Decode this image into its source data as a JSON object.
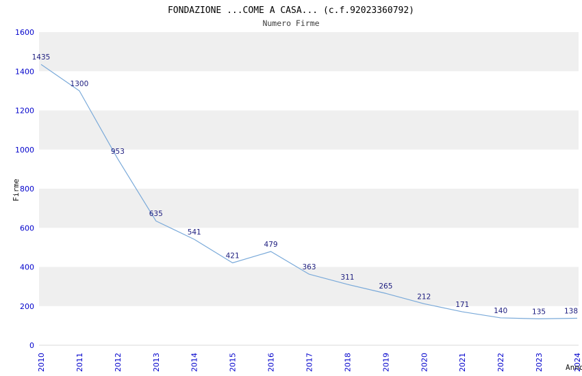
{
  "header": {
    "title": "FONDAZIONE ...COME A CASA... (c.f.92023360792)",
    "subtitle": "Numero Firme"
  },
  "chart_data": {
    "type": "line",
    "x": [
      2010,
      2011,
      2012,
      2013,
      2014,
      2015,
      2016,
      2017,
      2018,
      2019,
      2020,
      2021,
      2022,
      2023,
      2024
    ],
    "values": [
      1435,
      1300,
      953,
      635,
      541,
      421,
      479,
      363,
      311,
      265,
      212,
      171,
      140,
      135,
      138
    ],
    "title": "FONDAZIONE ...COME A CASA... (c.f.92023360792)",
    "subtitle": "Numero Firme",
    "xlabel": "Anno",
    "ylabel": "Firme",
    "ylim": [
      0,
      1600
    ],
    "ytick_step": 200,
    "grid": "alternating-horizontal-bands",
    "legend": "none",
    "colors": {
      "line": "#79a9d9",
      "band": "#efefef",
      "tick_label": "#0000cc",
      "data_label": "#1b1b7e",
      "axis_title": "#111111",
      "title": "#000000",
      "subtitle": "#3c3c3c",
      "axis_line": "#d8d8d8",
      "background": "#ffffff"
    }
  }
}
